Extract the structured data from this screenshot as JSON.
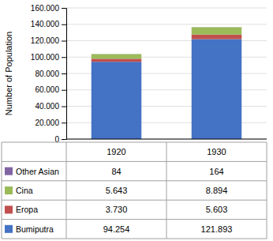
{
  "chart_data": {
    "type": "bar",
    "stacked": true,
    "ylabel": "Number of Population",
    "categories": [
      "1920",
      "1930"
    ],
    "series": [
      {
        "name": "Bumiputra",
        "color": "#4472C4",
        "values": [
          94254,
          121893
        ],
        "value_labels": [
          "94.254",
          "121.893"
        ]
      },
      {
        "name": "Eropa",
        "color": "#C0504D",
        "values": [
          3730,
          5603
        ],
        "value_labels": [
          "3.730",
          "5.603"
        ]
      },
      {
        "name": "Cina",
        "color": "#9BBB59",
        "values": [
          5643,
          8894
        ],
        "value_labels": [
          "5.643",
          "8.894"
        ]
      },
      {
        "name": "Other Asian",
        "color": "#8064A2",
        "values": [
          84,
          164
        ],
        "value_labels": [
          "84",
          "164"
        ]
      }
    ],
    "ylim": [
      0,
      160000
    ],
    "yticks": [
      0,
      {
        "value": 20000,
        "label": "20.000"
      },
      {
        "value": 40000,
        "label": "40.000"
      },
      {
        "value": 60000,
        "label": "60.000"
      },
      {
        "value": 80000,
        "label": "80.000"
      },
      {
        "value": 100000,
        "label": "100.000"
      },
      {
        "value": 120000,
        "label": "120.000"
      },
      {
        "value": 140000,
        "label": "140.000"
      },
      {
        "value": 160000,
        "label": "160.000"
      }
    ],
    "grid": true,
    "data_labels": true,
    "tick_labels": "y"
  }
}
